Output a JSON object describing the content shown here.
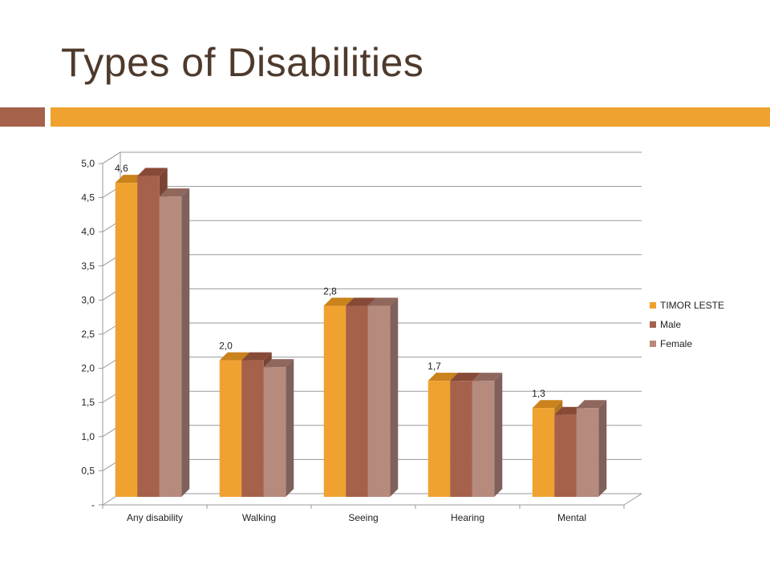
{
  "slide": {
    "title": "Types of Disabilities",
    "accent_left_color": "#a5614a",
    "accent_bar_color": "#efa22f"
  },
  "chart_data": {
    "type": "bar",
    "style": "3d-clustered-column",
    "categories": [
      "Any  disability",
      "Walking",
      "Seeing",
      "Hearing",
      "Mental"
    ],
    "series": [
      {
        "name": "TIMOR LESTE",
        "values": [
          4.6,
          2.0,
          2.8,
          1.7,
          1.3
        ],
        "color": "#efa22f",
        "top_color": "#c9821c",
        "side_color": "#b2761d"
      },
      {
        "name": "Male",
        "values": [
          4.7,
          2.0,
          2.8,
          1.7,
          1.2
        ],
        "color": "#a5614a",
        "top_color": "#874a37",
        "side_color": "#7a4434"
      },
      {
        "name": "Female",
        "values": [
          4.4,
          1.9,
          2.8,
          1.7,
          1.3
        ],
        "color": "#b68a7c",
        "top_color": "#8f675c",
        "side_color": "#80605a"
      }
    ],
    "data_labels": [
      {
        "category": 0,
        "series": 0,
        "text": "4,6"
      },
      {
        "category": 1,
        "series": 0,
        "text": "2,0"
      },
      {
        "category": 2,
        "series": 0,
        "text": "2,8"
      },
      {
        "category": 3,
        "series": 0,
        "text": "1,7"
      },
      {
        "category": 4,
        "series": 0,
        "text": "1,3"
      }
    ],
    "y_ticks": [
      "-",
      "0,5",
      "1,0",
      "1,5",
      "2,0",
      "2,5",
      "3,0",
      "3,5",
      "4,0",
      "4,5",
      "5,0"
    ],
    "ylim": [
      0,
      5
    ],
    "grid": true,
    "legend_position": "right"
  }
}
